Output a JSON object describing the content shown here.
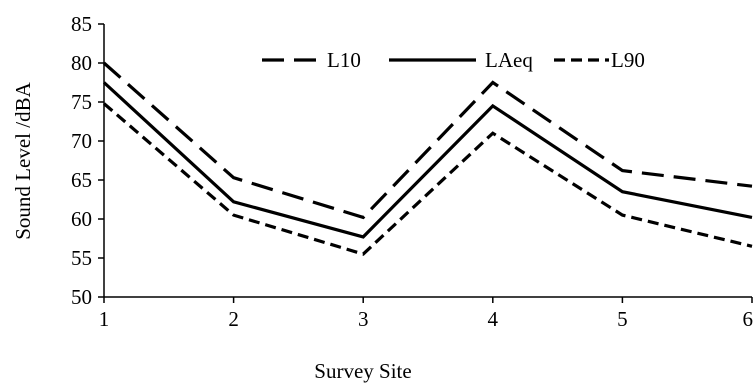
{
  "chart_data": {
    "type": "line",
    "title": "",
    "xlabel": "Survey Site",
    "ylabel": "Sound Level /dBA",
    "x": [
      1,
      2,
      3,
      4,
      5,
      6
    ],
    "x_tick_labels": [
      "1",
      "2",
      "3",
      "4",
      "5",
      "6"
    ],
    "ylim": [
      50,
      85
    ],
    "y_ticks": [
      50,
      55,
      60,
      65,
      70,
      75,
      80,
      85
    ],
    "y_tick_labels": [
      "50",
      "55",
      "60",
      "65",
      "70",
      "75",
      "80",
      "85"
    ],
    "grid": false,
    "legend_position": "top",
    "series": [
      {
        "name": "L10",
        "values": [
          80.0,
          65.3,
          60.2,
          77.5,
          66.2,
          64.2
        ],
        "line_style": "long-dash",
        "color": "#000000"
      },
      {
        "name": "LAeq",
        "values": [
          77.5,
          62.2,
          57.7,
          74.5,
          63.5,
          60.2
        ],
        "line_style": "solid",
        "color": "#000000"
      },
      {
        "name": "L90",
        "values": [
          74.8,
          60.5,
          55.5,
          71.0,
          60.5,
          56.5
        ],
        "line_style": "short-dash",
        "color": "#000000"
      }
    ]
  }
}
